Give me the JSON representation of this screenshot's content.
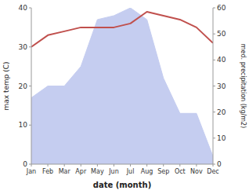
{
  "chart_data": {
    "type": "line",
    "categories": [
      "Jan",
      "Feb",
      "Mar",
      "Apr",
      "May",
      "Jun",
      "Jul",
      "Aug",
      "Sep",
      "Oct",
      "Nov",
      "Dec"
    ],
    "series": [
      {
        "type": "area",
        "color": "#c5cdf0",
        "values": [
          17,
          20,
          20,
          25,
          37,
          38,
          40,
          37,
          22,
          13,
          13,
          2
        ]
      },
      {
        "type": "line",
        "color": "#c0504d",
        "values": [
          30,
          33,
          34,
          35,
          35,
          35,
          36,
          39,
          38,
          37,
          35,
          31
        ]
      }
    ],
    "xlabel": "date (month)",
    "ylabel": "max temp (C)",
    "y2label": "med. precipitation (kg/m2)",
    "ylim": [
      0,
      40
    ],
    "yticks": [
      0,
      10,
      20,
      30,
      40
    ],
    "y2lim": [
      0,
      60
    ],
    "y2ticks": [
      0,
      10,
      20,
      30,
      40,
      50,
      60
    ],
    "grid": false
  }
}
